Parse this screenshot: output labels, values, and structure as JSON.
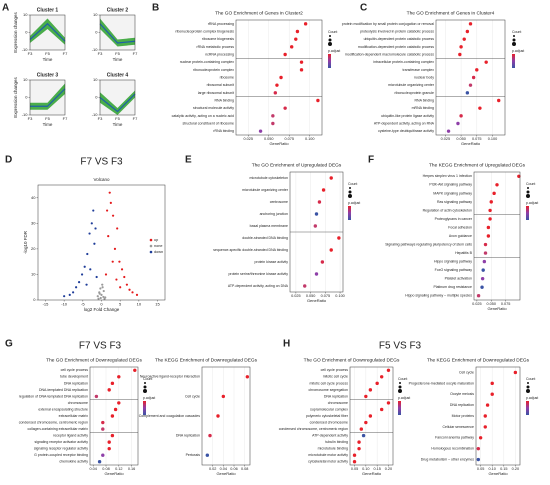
{
  "panel_labels": [
    "A",
    "B",
    "C",
    "D",
    "E",
    "F",
    "G",
    "H"
  ],
  "headings": [
    "F7 VS F3",
    "F5 VS F3"
  ],
  "chart_data": [
    {
      "type": "band",
      "title": "Cluster 1",
      "categories": [
        "F3",
        "F5",
        "F7"
      ],
      "xlabel": "Time",
      "ylabel": "Expression changes",
      "ylim": [
        -10,
        10
      ],
      "yticks": [
        -10,
        0,
        10
      ],
      "colors": [
        "#2ca02c",
        "#1f5fa8"
      ],
      "series": [
        {
          "values": [
            -2,
            8,
            -3
          ]
        },
        {
          "values": [
            -4,
            5,
            -5
          ]
        },
        {
          "values": [
            -6,
            2,
            -7
          ]
        }
      ]
    },
    {
      "type": "band",
      "title": "Cluster 2",
      "categories": [
        "F3",
        "F5",
        "F7"
      ],
      "xlabel": "Time",
      "ylim": [
        -10,
        10
      ],
      "yticks": [
        -10,
        0,
        10
      ],
      "colors": [
        "#2ca02c",
        "#1f5fa8"
      ],
      "series": [
        {
          "values": [
            8,
            -4,
            -3
          ]
        },
        {
          "values": [
            5,
            -6,
            -5
          ]
        },
        {
          "values": [
            2,
            -8,
            -7
          ]
        }
      ]
    },
    {
      "type": "band",
      "title": "Cluster 3",
      "categories": [
        "F3",
        "F5",
        "F7"
      ],
      "xlabel": "Time",
      "ylabel": "Expression changes",
      "ylim": [
        -10,
        10
      ],
      "yticks": [
        -10,
        0,
        10
      ],
      "colors": [
        "#2ca02c",
        "#1f5fa8"
      ],
      "series": [
        {
          "values": [
            -3,
            -3,
            8
          ]
        },
        {
          "values": [
            -5,
            -5,
            5
          ]
        },
        {
          "values": [
            -7,
            -7,
            2
          ]
        }
      ]
    },
    {
      "type": "band",
      "title": "Cluster 4",
      "categories": [
        "F3",
        "F5",
        "F7"
      ],
      "xlabel": "Time",
      "ylim": [
        -10,
        10
      ],
      "yticks": [
        -10,
        0,
        10
      ],
      "colors": [
        "#2ca02c",
        "#1f5fa8"
      ],
      "series": [
        {
          "values": [
            3,
            -6,
            4
          ]
        },
        {
          "values": [
            0,
            -8,
            2
          ]
        },
        {
          "values": [
            -3,
            -10,
            0
          ]
        }
      ]
    },
    {
      "type": "dot",
      "title": "The GO Enrichment of Genes in Cluster2",
      "xlabel": "GeneRatio",
      "legend_titles": [
        "Count",
        "p.adjust"
      ],
      "grid": true,
      "categories": [
        "rRNA processing",
        "ribonucleoprotein complex biogenesis",
        "ribosome biogenesis",
        "rRNA metabolic process",
        "ncRNA processing",
        "nuclear protein-containing complex",
        "ribonucleoprotein complex",
        "ribosome",
        "ribosomal subunit",
        "large ribosomal subunit",
        "RNA binding",
        "structural molecule activity",
        "catalytic activity, acting on a nucleic acid",
        "structural constituent of ribosome",
        "rRNA binding"
      ],
      "values": [
        0.095,
        0.085,
        0.083,
        0.078,
        0.07,
        0.09,
        0.09,
        0.065,
        0.06,
        0.058,
        0.11,
        0.07,
        0.055,
        0.055,
        0.04
      ],
      "point_colors": [
        "#e8202a",
        "#e8202a",
        "#e8202a",
        "#e8202a",
        "#e8202a",
        "#e8202a",
        "#e8202a",
        "#e8202a",
        "#e8202a",
        "#d62a4a",
        "#e8202a",
        "#d62a4a",
        "#c23a6a",
        "#c23a6a",
        "#8e3fa8"
      ],
      "xlim": [
        0.01,
        0.115
      ],
      "xticks": [
        0.025,
        {
          "value": 0.05,
          "label": "0.050"
        },
        0.075,
        {
          "value": 0.1,
          "label": "0.100"
        }
      ]
    },
    {
      "type": "dot",
      "title": "The GO Enrichment of Genes in Cluster4",
      "xlabel": "GeneRatio",
      "legend_titles": [
        "Count",
        "p.adjust"
      ],
      "grid": true,
      "categories": [
        "protein modification by small protein conjugation or removal",
        "proteolysis involved in protein catabolic process",
        "ubiquitin-dependent protein catabolic process",
        "modification-dependent protein catabolic process",
        "modification-dependent macromolecule catabolic process",
        "intracellular protein-containing complex",
        "transferase complex",
        "nuclear body",
        "microtubule organizing center",
        "ribonucleoprotein granule",
        "RNA binding",
        "mRNA binding",
        "ubiquitin-like protein ligase activity",
        "ATP-dependent activity, acting on RNA",
        "cysteine-type deubiquitinase activity"
      ],
      "values": [
        0.065,
        0.06,
        0.055,
        0.05,
        0.048,
        0.09,
        0.075,
        0.07,
        0.065,
        0.06,
        0.11,
        0.08,
        0.05,
        0.045,
        0.03
      ],
      "point_colors": [
        "#e8202a",
        "#e8202a",
        "#e8202a",
        "#e8202a",
        "#e8202a",
        "#e8202a",
        "#e8202a",
        "#d62a4a",
        "#c23a6a",
        "#3a53a4",
        "#e8202a",
        "#e8202a",
        "#d62a4a",
        "#8e3fa8",
        "#8e3fa8"
      ],
      "xlim": [
        0.01,
        0.12
      ],
      "xticks": [
        0.025,
        {
          "value": 0.05,
          "label": "0.050"
        },
        0.075,
        {
          "value": 0.1,
          "label": "0.100"
        }
      ]
    },
    {
      "type": "scatter",
      "title": "F7 VS F3",
      "subtitle": "Volcano",
      "xlabel": "log2 Fold Change",
      "ylabel": "-log10 FDR",
      "xlim": [
        -17,
        17
      ],
      "xticks": [
        -15,
        -10,
        -5,
        0,
        5,
        10,
        15
      ],
      "ylim": [
        0,
        45
      ],
      "yticks": [
        0,
        10,
        20,
        30,
        40
      ],
      "series": [
        {
          "name": "up",
          "color": "#e41a1c",
          "x": [
            1.2,
            1.8,
            2.5,
            3.1,
            3.6,
            4.2,
            4.8,
            5.5,
            6.1,
            6.8,
            7.5,
            8.3,
            2.2,
            3.0,
            1.5,
            4.0,
            5.0,
            9.5
          ],
          "y": [
            10,
            25,
            38,
            33,
            20,
            28,
            15,
            12,
            9,
            6,
            4,
            3,
            42,
            15,
            35,
            8,
            5,
            2
          ]
        },
        {
          "name": "none",
          "color": "#9a9a9a",
          "x": [
            -1.0,
            -0.6,
            -0.3,
            0.0,
            0.3,
            0.6,
            1.0,
            -0.8,
            0.8,
            -0.2,
            0.2,
            0.5,
            -0.5
          ],
          "y": [
            1.5,
            3,
            4.5,
            2,
            5,
            3.5,
            1,
            0.5,
            0.4,
            0.8,
            6,
            1.2,
            2.5
          ]
        },
        {
          "name": "down",
          "color": "#1f3d99",
          "x": [
            -1.3,
            -1.9,
            -2.6,
            -3.2,
            -3.8,
            -4.5,
            -5.2,
            -6.0,
            -6.8,
            -7.6,
            -8.5,
            -2.2,
            -3.0,
            -1.6,
            -4.0,
            -10.0
          ],
          "y": [
            9,
            22,
            30,
            26,
            18,
            13,
            10,
            7,
            5,
            3,
            2,
            35,
            12,
            28,
            6,
            1.5
          ]
        }
      ]
    },
    {
      "type": "dot",
      "title": "The GO Enrichment of Upregulated DEGs",
      "xlabel": "GeneRatio",
      "legend_titles": [
        "Count",
        "p.adjust"
      ],
      "grid": true,
      "categories": [
        "microtubule cytoskeleton",
        "microtubule organizing center",
        "centrosome",
        "anchoring junction",
        "basal plasma membrane",
        "double-stranded DNA binding",
        "sequence-specific double-stranded DNA binding",
        "protein kinase activity",
        "protein serine/threonine kinase activity",
        "ATP-dependent activity, acting on DNA"
      ],
      "values": [
        0.085,
        0.072,
        0.065,
        0.06,
        0.058,
        0.098,
        0.085,
        0.07,
        0.06,
        0.04
      ],
      "point_colors": [
        "#e8202a",
        "#e8202a",
        "#d62a4a",
        "#3a53a4",
        "#c23a6a",
        "#e8202a",
        "#e8202a",
        "#d62a4a",
        "#8e3fa8",
        "#c23a6a"
      ],
      "xlim": [
        0.015,
        0.105
      ],
      "xticks": [
        0.025,
        {
          "value": 0.05,
          "label": "0.050"
        },
        0.075,
        {
          "value": 0.1,
          "label": "0.100"
        }
      ]
    },
    {
      "type": "dot",
      "title": "The KEGG Enrichment of Upregulated DEGs",
      "xlabel": "GeneRatio",
      "legend_titles": [
        "Count",
        "p.adjust"
      ],
      "grid": true,
      "categories": [
        "Herpes simplex virus 1 infection",
        "PI3K-Akt signaling pathway",
        "MAPK signaling pathway",
        "Ras signaling pathway",
        "Regulation of actin cytoskeleton",
        "Proteoglycans in cancer",
        "Focal adhesion",
        "Axon guidance",
        "Signaling pathways regulating pluripotency of stem cells",
        "Hepatitis B",
        "Hippo signaling pathway",
        "FoxO signaling pathway",
        "Platelet activation",
        "Platinum drug resistance",
        "Hippo signaling pathway – multiple species"
      ],
      "values": [
        0.098,
        0.06,
        0.055,
        0.05,
        0.048,
        0.048,
        0.045,
        0.045,
        0.04,
        0.04,
        0.038,
        0.036,
        0.035,
        0.034,
        0.028
      ],
      "point_colors": [
        "#e8202a",
        "#e8202a",
        "#e8202a",
        "#e8202a",
        "#e8202a",
        "#e8202a",
        "#e8202a",
        "#e8202a",
        "#d62a4a",
        "#c23a6a",
        "#8e3fa8",
        "#3a53a4",
        "#8e3fa8",
        "#3a53a4",
        "#c23a6a"
      ],
      "xlim": [
        0.02,
        0.1
      ],
      "xticks": [
        0.025,
        {
          "value": 0.05,
          "label": "0.050"
        },
        0.075
      ]
    },
    {
      "type": "dot",
      "title": "The GO Enrichment of Downregulated DEGs",
      "xlabel": "GeneRatio",
      "legend_titles": [
        "Count",
        "p.adjust"
      ],
      "grid": true,
      "categories": [
        "cell cycle process",
        "tube development",
        "DNA replication",
        "DNA-templated DNA replication",
        "regulation of DNA-templated DNA replication",
        "chromosome",
        "external encapsulating structure",
        "extracellular matrix",
        "condensed chromosome, centromeric region",
        "collagen-containing extracellular matrix",
        "receptor ligand activity",
        "signaling receptor activator activity",
        "signaling receptor regulator activity",
        "G protein-coupled receptor binding",
        "chemokine activity"
      ],
      "values": [
        0.17,
        0.12,
        0.1,
        0.09,
        0.05,
        0.12,
        0.11,
        0.1,
        0.07,
        0.07,
        0.1,
        0.09,
        0.09,
        0.07,
        0.06
      ],
      "point_colors": [
        "#e8202a",
        "#e8202a",
        "#e8202a",
        "#e8202a",
        "#c23a6a",
        "#e8202a",
        "#e8202a",
        "#e8202a",
        "#d62a4a",
        "#c23a6a",
        "#e8202a",
        "#e8202a",
        "#e8202a",
        "#8e3fa8",
        "#3a53a4"
      ],
      "xlim": [
        0.03,
        0.18
      ],
      "xticks": [
        0.04,
        0.08,
        0.12,
        0.16
      ]
    },
    {
      "type": "dot",
      "title": "The KEGG Enrichment of Downregulated DEGs",
      "xlabel": "GeneRatio",
      "grid": true,
      "categories": [
        "Neuroactive ligand-receptor interaction",
        "Cell cycle",
        "Complement and coagulation cascades",
        "DNA replication",
        "Pertussis"
      ],
      "values": [
        0.085,
        0.04,
        0.03,
        0.015,
        0.01
      ],
      "point_colors": [
        "#e8202a",
        "#e8202a",
        "#e8202a",
        "#d62a4a",
        "#3a53a4"
      ],
      "xlim": [
        0,
        0.09
      ],
      "xticks": [
        0.02,
        0.04,
        0.06,
        0.08
      ]
    },
    {
      "type": "dot",
      "title": "The GO Enrichment of Downregulated DEGs",
      "xlabel": "GeneRatio",
      "legend_titles": [
        "Count",
        "p.adjust"
      ],
      "grid": true,
      "categories": [
        "cell cycle process",
        "mitotic cell cycle",
        "mitotic cell cycle process",
        "chromosome segregation",
        "DNA replication",
        "chromosome",
        "supramolecular complex",
        "polymeric cytoskeletal fiber",
        "condensed chromosome",
        "condensed chromosome, centromeric region",
        "ATP-dependent activity",
        "tubulin binding",
        "microtubule binding",
        "microtubule motor activity",
        "cytoskeletal motor activity"
      ],
      "values": [
        0.2,
        0.17,
        0.15,
        0.12,
        0.1,
        0.2,
        0.17,
        0.12,
        0.1,
        0.08,
        0.09,
        0.07,
        0.07,
        0.05,
        0.05
      ],
      "point_colors": [
        "#e8202a",
        "#e8202a",
        "#e8202a",
        "#e8202a",
        "#e8202a",
        "#e8202a",
        "#e8202a",
        "#e8202a",
        "#e8202a",
        "#e8202a",
        "#3a53a4",
        "#e8202a",
        "#e8202a",
        "#e8202a",
        "#e8202a"
      ],
      "xlim": [
        0.03,
        0.22
      ],
      "xticks": [
        0.05,
        {
          "value": 0.1,
          "label": "0.10"
        },
        0.15,
        {
          "value": 0.2,
          "label": "0.20"
        }
      ]
    },
    {
      "type": "dot",
      "title": "The KEGG Enrichment of Downregulated DEGs",
      "xlabel": "GeneRatio",
      "legend_titles": [
        "Count",
        "p.adjust"
      ],
      "grid": true,
      "categories": [
        "Cell cycle",
        "Progesterone-mediated oocyte maturation",
        "Oocyte meiosis",
        "DNA replication",
        "Motor proteins",
        "Cellular senescence",
        "Fanconi anemia pathway",
        "Homologous recombination",
        "Drug metabolism – other enzymes"
      ],
      "values": [
        0.2,
        0.1,
        0.1,
        0.08,
        0.07,
        0.07,
        0.05,
        0.04,
        0.04
      ],
      "point_colors": [
        "#e8202a",
        "#e8202a",
        "#e8202a",
        "#e8202a",
        "#e8202a",
        "#e8202a",
        "#e8202a",
        "#d62a4a",
        "#3a53a4"
      ],
      "xlim": [
        0.03,
        0.22
      ],
      "xticks": [
        0.05,
        {
          "value": 0.1,
          "label": "0.10"
        },
        0.15,
        {
          "value": 0.2,
          "label": "0.20"
        }
      ]
    }
  ]
}
